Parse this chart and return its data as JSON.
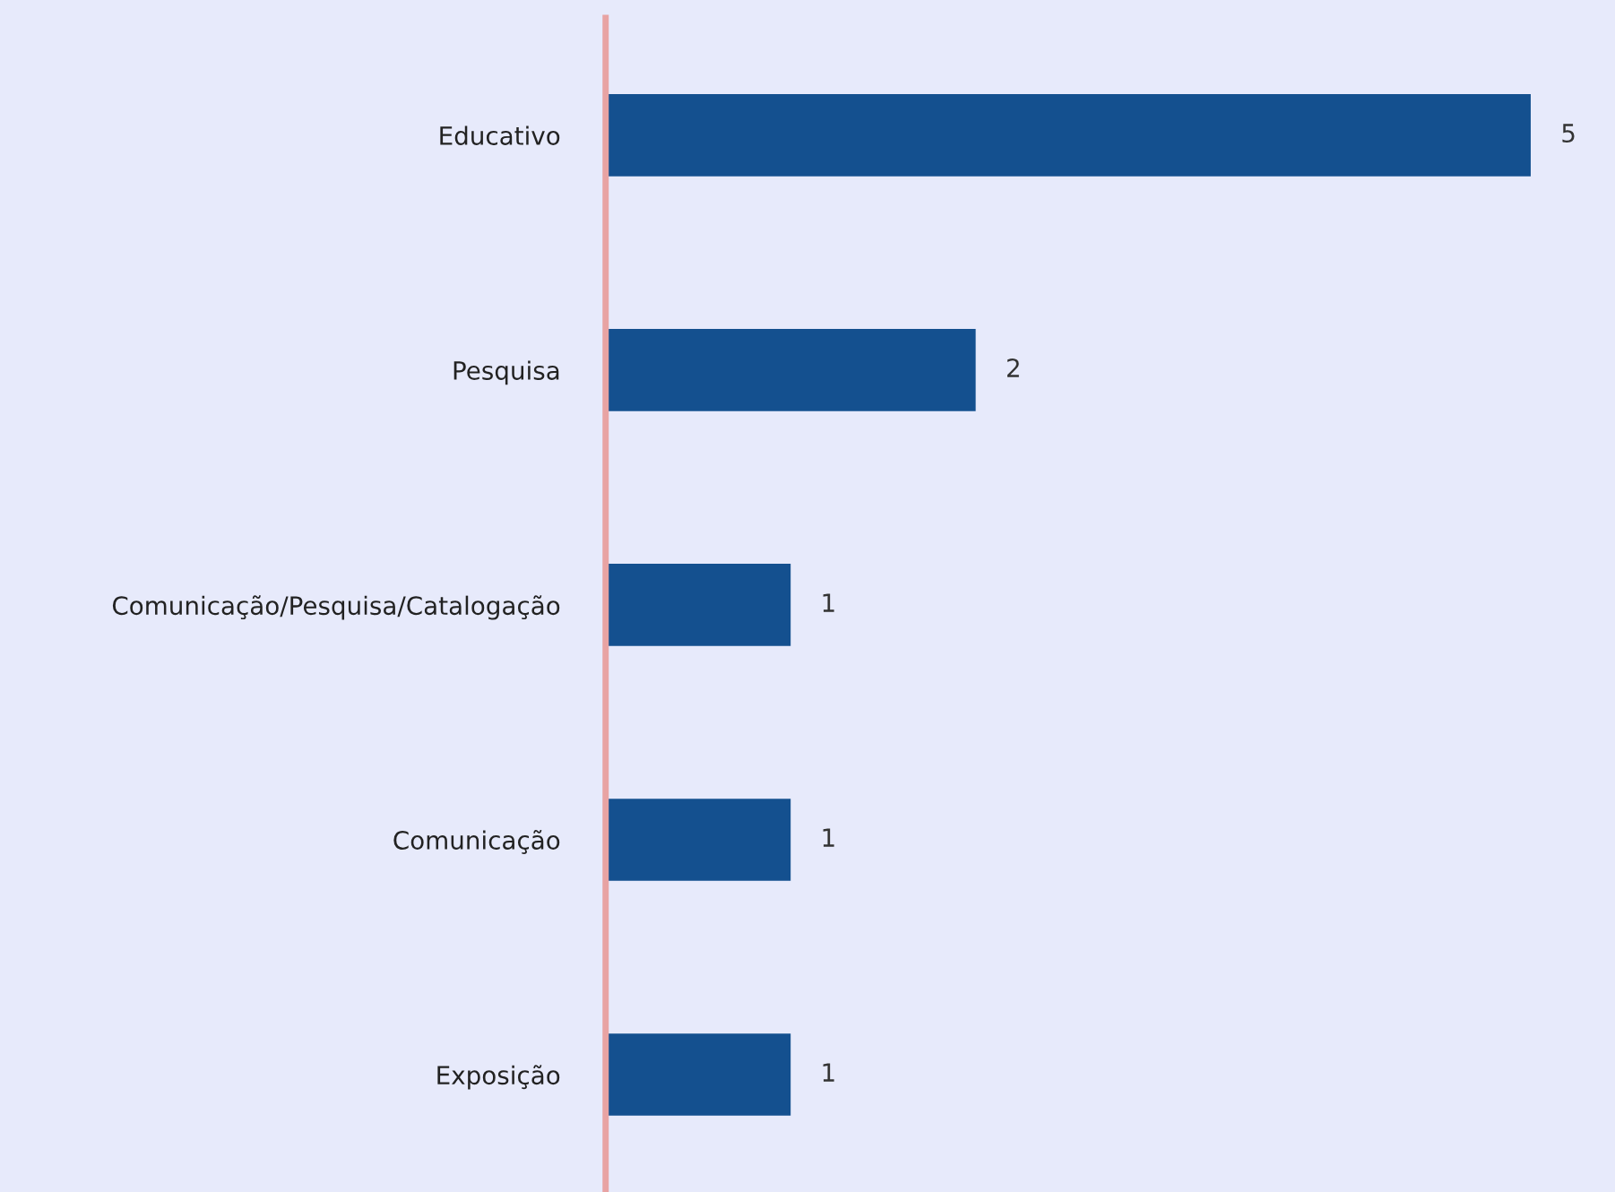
{
  "chart_data": {
    "type": "bar",
    "orientation": "horizontal",
    "categories": [
      "Educativo",
      "Pesquisa",
      "Comunicação/Pesquisa/Catalogação",
      "Comunicação",
      "Exposição"
    ],
    "values": [
      5,
      2,
      1,
      1,
      1
    ],
    "color": "#14508f",
    "data_labels": true
  }
}
